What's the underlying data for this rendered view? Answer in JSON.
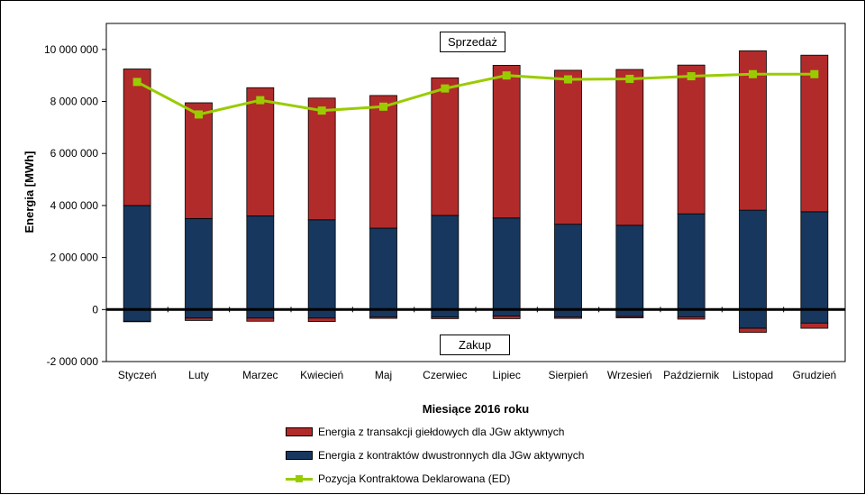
{
  "chart_data": {
    "type": "bar",
    "subtype": "stacked-bar-with-line",
    "xlabel": "Miesiące 2016  roku",
    "ylabel": "Energia  [MWh]",
    "ylim": [
      -2000000,
      11000000
    ],
    "yticks": [
      -2000000,
      0,
      2000000,
      4000000,
      6000000,
      8000000,
      10000000
    ],
    "ytick_labels": [
      "-2 000 000",
      "0",
      "2 000 000",
      "4 000 000",
      "6 000 000",
      "8 000 000",
      "10 000 000"
    ],
    "grid": false,
    "legend_position": "bottom",
    "annotations": {
      "top": "Sprzedaż",
      "bottom": "Zakup"
    },
    "categories": [
      "Styczeń",
      "Luty",
      "Marzec",
      "Kwiecień",
      "Maj",
      "Czerwiec",
      "Lipiec",
      "Sierpień",
      "Wrzesień",
      "Październik",
      "Listopad",
      "Grudzień"
    ],
    "series": [
      {
        "name": "Energia z kontraktów dwustronnych dla JGw aktywnych",
        "color": "#17375e",
        "positive": [
          4000000,
          3500000,
          3600000,
          3450000,
          3130000,
          3620000,
          3520000,
          3280000,
          3240000,
          3680000,
          3820000,
          3760000
        ],
        "negative": [
          -450000,
          -330000,
          -330000,
          -330000,
          -280000,
          -290000,
          -250000,
          -280000,
          -270000,
          -280000,
          -720000,
          -520000
        ]
      },
      {
        "name": "Energia z transakcji giełdowych dla JGw aktywnych",
        "color": "#b22b2b",
        "positive": [
          5250000,
          4450000,
          4930000,
          4680000,
          5100000,
          5290000,
          5870000,
          5920000,
          5990000,
          5720000,
          6130000,
          6020000
        ],
        "negative": [
          -20000,
          -90000,
          -120000,
          -130000,
          -60000,
          -60000,
          -100000,
          -60000,
          -50000,
          -90000,
          -160000,
          -200000
        ]
      },
      {
        "name": "Pozycja Kontraktowa Deklarowana (ED)",
        "color": "#99cc00",
        "type": "line",
        "values": [
          8750000,
          7500000,
          8050000,
          7650000,
          7800000,
          8500000,
          9000000,
          8850000,
          8870000,
          8970000,
          9050000,
          9050000
        ]
      }
    ]
  }
}
